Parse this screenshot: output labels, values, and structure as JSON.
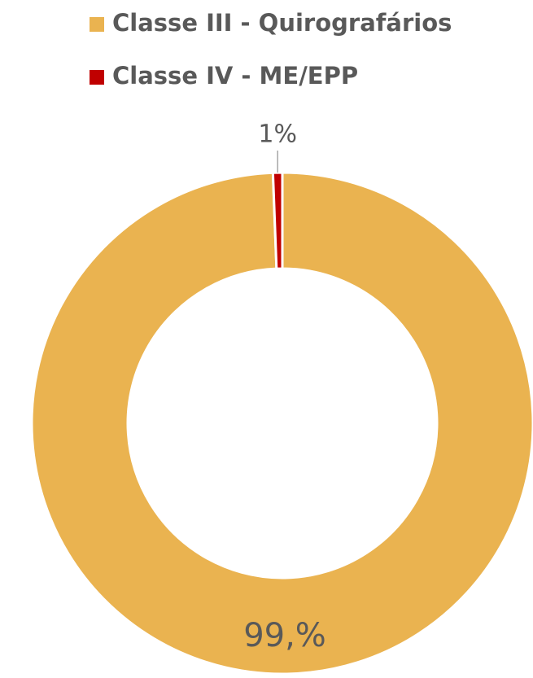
{
  "chart_data": {
    "type": "donut",
    "categories": [
      "Classe III - Quirografários",
      "Classe IV - ME/EPP"
    ],
    "values": [
      99.4,
      0.6
    ],
    "value_labels": [
      "99,%",
      "1%"
    ],
    "colors": [
      "#EAB350",
      "#C00000"
    ]
  }
}
